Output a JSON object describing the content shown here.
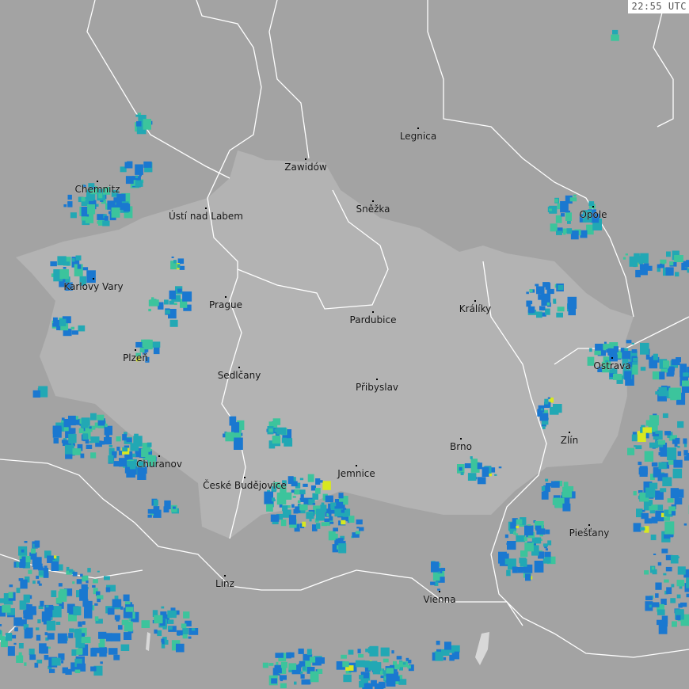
{
  "timestamp": "22:55 UTC",
  "colors": {
    "background": "#a3a3a3",
    "highlight_region": "#b3b3b3",
    "borders": "#ffffff",
    "radar_low": "#1a78d0",
    "radar_mid": "#22a8b4",
    "radar_high": "#3cc49c",
    "radar_peak": "#d8e820"
  },
  "cities": [
    {
      "name": "Legnica"
    },
    {
      "name": "Zawidów"
    },
    {
      "name": "Chemnitz"
    },
    {
      "name": "Sněžka"
    },
    {
      "name": "Ústí nad Labem"
    },
    {
      "name": "Opole"
    },
    {
      "name": "Karlovy Vary"
    },
    {
      "name": "Prague"
    },
    {
      "name": "Pardubice"
    },
    {
      "name": "Králíky"
    },
    {
      "name": "Plzeň"
    },
    {
      "name": "Ostrava"
    },
    {
      "name": "Sedlčany"
    },
    {
      "name": "Přibyslav"
    },
    {
      "name": "Zlín"
    },
    {
      "name": "Brno"
    },
    {
      "name": "Churanov"
    },
    {
      "name": "Jemnice"
    },
    {
      "name": "České Budějovice"
    },
    {
      "name": "Piešťany"
    },
    {
      "name": "Linz"
    },
    {
      "name": "Vienna"
    }
  ]
}
